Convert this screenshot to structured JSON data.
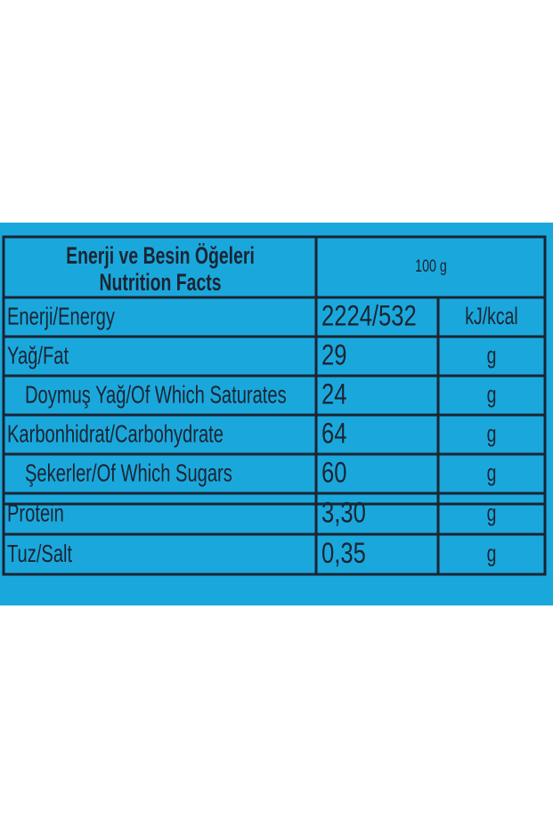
{
  "header": {
    "title": [
      "Enerji ve Besin Öğeleri",
      "Nutrition Facts"
    ],
    "amount": "100 g"
  },
  "table": {
    "rows": [
      [
        "Enerji/Energy",
        "2224/532",
        "kJ/kcal"
      ],
      [
        "Yağ/Fat",
        "29",
        "g"
      ],
      [
        "Doymuş Yağ/Of Which Saturates",
        "24",
        "g"
      ],
      [
        "Karbonhidrat/Carbohydrate",
        "64",
        "g"
      ],
      [
        "Şekerler/Of Which Sugars",
        "60",
        "g"
      ],
      [
        "Protein",
        "3,30",
        "g"
      ],
      [
        "Tuz/Salt",
        "0,35",
        "g"
      ]
    ]
  }
}
